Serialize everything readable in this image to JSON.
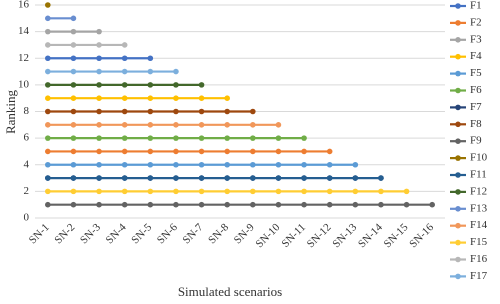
{
  "chart_data": {
    "type": "line",
    "x_label": "Simulated scenarios",
    "y_label": "Ranking",
    "categories": [
      "SN-1",
      "SN-2",
      "SN-3",
      "SN-4",
      "SN-5",
      "SN-6",
      "SN-7",
      "SN-8",
      "SN-9",
      "SN-10",
      "SN-11",
      "SN-12",
      "SN-13",
      "SN-14",
      "SN-15",
      "SN-16"
    ],
    "ylim": [
      0,
      16
    ],
    "yticks": [
      0,
      2,
      4,
      6,
      8,
      10,
      12,
      14,
      16
    ],
    "grid": true,
    "legend": "right",
    "series": [
      {
        "name": "F1",
        "color": "#4472c4",
        "values": [
          12,
          12,
          12,
          12,
          12,
          null,
          null,
          null,
          null,
          null,
          null,
          null,
          null,
          null,
          null,
          null
        ]
      },
      {
        "name": "F2",
        "color": "#ed7d31",
        "values": [
          5,
          5,
          5,
          5,
          5,
          5,
          5,
          5,
          5,
          5,
          5,
          5,
          null,
          null,
          null,
          null
        ]
      },
      {
        "name": "F3",
        "color": "#a5a5a5",
        "values": [
          14,
          14,
          14,
          null,
          null,
          null,
          null,
          null,
          null,
          null,
          null,
          null,
          null,
          null,
          null,
          null
        ]
      },
      {
        "name": "F4",
        "color": "#ffc000",
        "values": [
          9,
          9,
          9,
          9,
          9,
          9,
          9,
          9,
          null,
          null,
          null,
          null,
          null,
          null,
          null,
          null
        ]
      },
      {
        "name": "F5",
        "color": "#5b9bd5",
        "values": [
          4,
          4,
          4,
          4,
          4,
          4,
          4,
          4,
          4,
          4,
          4,
          4,
          4,
          null,
          null,
          null
        ]
      },
      {
        "name": "F6",
        "color": "#70ad47",
        "values": [
          6,
          6,
          6,
          6,
          6,
          6,
          6,
          6,
          6,
          6,
          6,
          null,
          null,
          null,
          null,
          null
        ]
      },
      {
        "name": "F7",
        "color": "#264478",
        "values": [
          3,
          3,
          3,
          3,
          3,
          3,
          3,
          3,
          3,
          3,
          3,
          3,
          3,
          3,
          null,
          null
        ]
      },
      {
        "name": "F8",
        "color": "#9e480e",
        "values": [
          8,
          8,
          8,
          8,
          8,
          8,
          8,
          8,
          8,
          null,
          null,
          null,
          null,
          null,
          null,
          null
        ]
      },
      {
        "name": "F9",
        "color": "#636363",
        "values": [
          1,
          1,
          1,
          1,
          1,
          1,
          1,
          1,
          1,
          1,
          1,
          1,
          1,
          1,
          1,
          1
        ]
      },
      {
        "name": "F10",
        "color": "#997300",
        "values": [
          16,
          null,
          null,
          null,
          null,
          null,
          null,
          null,
          null,
          null,
          null,
          null,
          null,
          null,
          null,
          null
        ]
      },
      {
        "name": "F11",
        "color": "#255e91",
        "values": [
          3,
          3,
          3,
          3,
          3,
          3,
          3,
          3,
          3,
          3,
          3,
          3,
          3,
          3,
          null,
          null
        ]
      },
      {
        "name": "F12",
        "color": "#43682b",
        "values": [
          10,
          10,
          10,
          10,
          10,
          10,
          10,
          null,
          null,
          null,
          null,
          null,
          null,
          null,
          null,
          null
        ]
      },
      {
        "name": "F13",
        "color": "#698ed0",
        "values": [
          15,
          15,
          null,
          null,
          null,
          null,
          null,
          null,
          null,
          null,
          null,
          null,
          null,
          null,
          null,
          null
        ]
      },
      {
        "name": "F14",
        "color": "#f1975a",
        "values": [
          7,
          7,
          7,
          7,
          7,
          7,
          7,
          7,
          7,
          7,
          null,
          null,
          null,
          null,
          null,
          null
        ]
      },
      {
        "name": "F15",
        "color": "#ffcd33",
        "values": [
          2,
          2,
          2,
          2,
          2,
          2,
          2,
          2,
          2,
          2,
          2,
          2,
          2,
          2,
          2,
          null
        ]
      },
      {
        "name": "F16",
        "color": "#b7b7b7",
        "values": [
          13,
          13,
          13,
          13,
          null,
          null,
          null,
          null,
          null,
          null,
          null,
          null,
          null,
          null,
          null,
          null
        ]
      },
      {
        "name": "F17",
        "color": "#7cafdd",
        "values": [
          11,
          11,
          11,
          11,
          11,
          11,
          null,
          null,
          null,
          null,
          null,
          null,
          null,
          null,
          null,
          null
        ]
      }
    ]
  }
}
